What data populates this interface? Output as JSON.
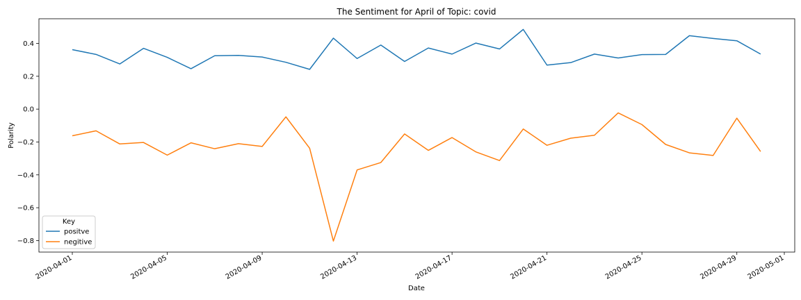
{
  "chart_data": {
    "type": "line",
    "title": "The Sentiment for April of Topic: covid",
    "xlabel": "Date",
    "ylabel": "Polarity",
    "x": [
      "2020-04-01",
      "2020-04-02",
      "2020-04-03",
      "2020-04-04",
      "2020-04-05",
      "2020-04-06",
      "2020-04-07",
      "2020-04-08",
      "2020-04-09",
      "2020-04-10",
      "2020-04-11",
      "2020-04-12",
      "2020-04-13",
      "2020-04-14",
      "2020-04-15",
      "2020-04-16",
      "2020-04-17",
      "2020-04-18",
      "2020-04-19",
      "2020-04-20",
      "2020-04-21",
      "2020-04-22",
      "2020-04-23",
      "2020-04-24",
      "2020-04-25",
      "2020-04-26",
      "2020-04-27",
      "2020-04-28",
      "2020-04-29",
      "2020-04-30"
    ],
    "xticks": [
      "2020-04-01",
      "2020-04-05",
      "2020-04-09",
      "2020-04-13",
      "2020-04-17",
      "2020-04-21",
      "2020-04-25",
      "2020-04-29",
      "2020-05-01"
    ],
    "yticks": [
      0.4,
      0.2,
      0.0,
      -0.2,
      -0.4,
      -0.6,
      -0.8
    ],
    "ytick_labels": [
      "0.4",
      "0.2",
      "0.0",
      "−0.2",
      "−0.4",
      "−0.6",
      "−0.8"
    ],
    "xlim": [
      "2020-04-01",
      "2020-05-01"
    ],
    "ylim": [
      -0.87,
      0.55
    ],
    "legend": {
      "title": "Key",
      "placement": "lower-left"
    },
    "grid": false,
    "series": [
      {
        "name": "positve",
        "color": "#1f77b4",
        "values": [
          0.362,
          0.333,
          0.275,
          0.37,
          0.315,
          0.246,
          0.325,
          0.327,
          0.317,
          0.285,
          0.242,
          0.432,
          0.308,
          0.39,
          0.29,
          0.372,
          0.335,
          0.402,
          0.366,
          0.485,
          0.268,
          0.283,
          0.335,
          0.311,
          0.332,
          0.333,
          0.447,
          0.43,
          0.416,
          0.335
        ]
      },
      {
        "name": "negitive",
        "color": "#ff7f0e",
        "values": [
          -0.162,
          -0.132,
          -0.212,
          -0.203,
          -0.28,
          -0.205,
          -0.241,
          -0.21,
          -0.227,
          -0.047,
          -0.238,
          -0.803,
          -0.37,
          -0.325,
          -0.151,
          -0.251,
          -0.173,
          -0.26,
          -0.313,
          -0.121,
          -0.22,
          -0.177,
          -0.159,
          -0.023,
          -0.094,
          -0.215,
          -0.266,
          -0.282,
          -0.055,
          -0.258
        ]
      }
    ]
  }
}
